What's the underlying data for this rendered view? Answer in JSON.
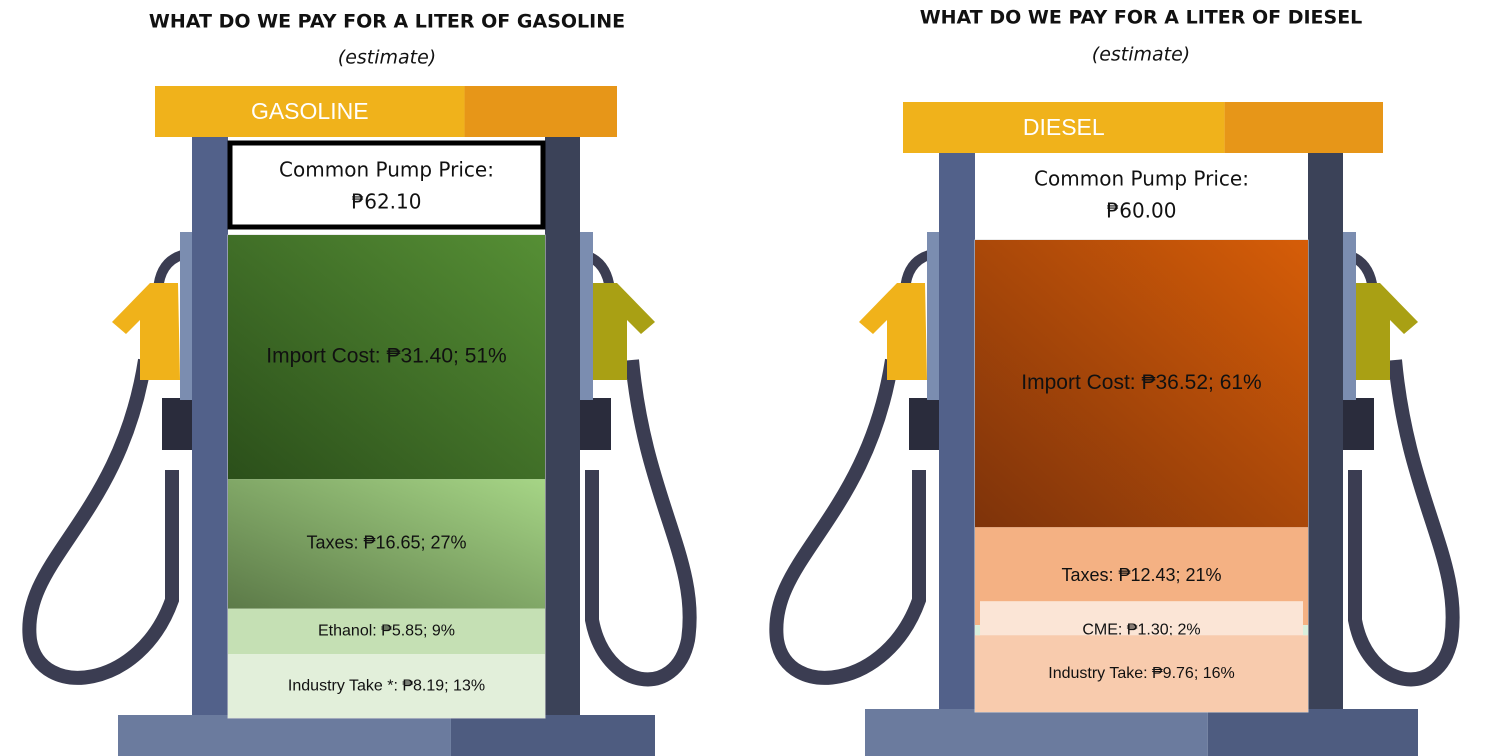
{
  "chart_data": [
    {
      "type": "stacked-column",
      "title": "WHAT DO WE PAY FOR A LITER OF GASOLINE",
      "subtitle": "(estimate)",
      "header": "GASOLINE",
      "price_label": "Common Pump Price:",
      "total": 62.1,
      "total_label": "₱62.10",
      "price_box": true,
      "segments": [
        {
          "label": "Import Cost: ₱31.40; 51%",
          "value": 31.4,
          "percent": 51,
          "colors": [
            "#2b4f1a",
            "#568f35"
          ]
        },
        {
          "label": "Taxes: ₱16.65; 27%",
          "value": 16.65,
          "percent": 27,
          "colors": [
            "#5c7a48",
            "#a6d586"
          ]
        },
        {
          "label": "Ethanol: ₱5.85; 9%",
          "value": 5.85,
          "percent": 9,
          "colors": [
            "#c5e0b4"
          ]
        },
        {
          "label": "Industry Take *: ₱8.19; 13%",
          "value": 8.19,
          "percent": 13,
          "colors": [
            "#e2efda"
          ]
        }
      ]
    },
    {
      "type": "stacked-column",
      "title": "WHAT DO WE PAY FOR A LITER OF DIESEL",
      "subtitle": "(estimate)",
      "header": "DIESEL",
      "price_label": "Common Pump Price:",
      "total": 60.0,
      "total_label": "₱60.00",
      "price_box": false,
      "segments": [
        {
          "label": "Import Cost: ₱36.52; 61%",
          "value": 36.52,
          "percent": 61,
          "colors": [
            "#7e330a",
            "#d65d08"
          ]
        },
        {
          "label": "Taxes: ₱12.43; 21%",
          "value": 12.43,
          "percent": 21,
          "colors": [
            "#f4b183"
          ]
        },
        {
          "label": "CME: ₱1.30; 2%",
          "value": 1.3,
          "percent": 2,
          "colors": [
            "#d9efdc"
          ]
        },
        {
          "label": "Industry Take: ₱9.76; 16%",
          "value": 9.76,
          "percent": 16,
          "colors": [
            "#f8cbad"
          ]
        }
      ]
    }
  ]
}
